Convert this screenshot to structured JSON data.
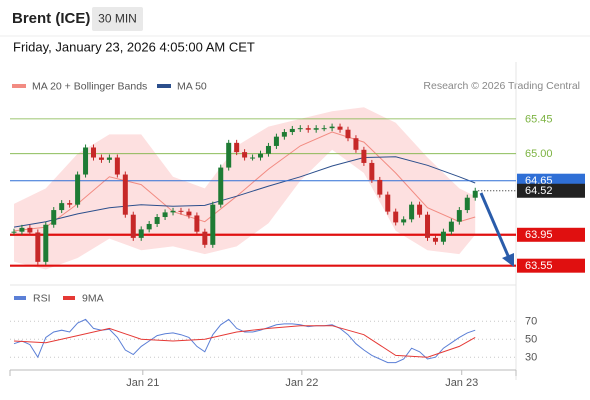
{
  "header": {
    "title": "Brent (ICE)",
    "interval": "30 MIN",
    "datetime": "Friday, January 23, 2026 4:05:00 AM CET",
    "credit": "Research © 2026 Trading Central"
  },
  "chart_data": [
    {
      "type": "candlestick",
      "values": [
        63.99,
        64.04,
        63.98,
        63.6,
        64.08,
        64.27,
        64.36,
        64.34,
        64.73,
        65.08,
        64.95,
        64.92,
        64.95,
        64.73,
        64.21,
        63.91,
        64.02,
        64.09,
        64.18,
        64.24,
        64.26,
        64.25,
        64.2,
        63.99,
        63.82,
        64.34,
        64.82,
        65.14,
        65.02,
        64.95,
        64.95,
        65.0,
        65.1,
        65.22,
        65.28,
        65.32,
        65.33,
        65.31,
        65.33,
        65.33,
        65.35,
        65.31,
        65.2,
        65.05,
        64.88,
        64.66,
        64.47,
        64.25,
        64.11,
        64.15,
        64.34,
        64.21,
        63.91,
        63.86,
        63.99,
        64.12,
        64.27,
        64.43,
        64.52
      ],
      "up_color": "#1e7b34",
      "down_color": "#c62828",
      "overlays": [
        {
          "name": "MA 20 + Bollinger Bands",
          "color": "#f28b82",
          "band_color": "#fde0e0",
          "x": [
            0,
            4,
            8,
            12,
            16,
            20,
            24,
            28,
            32,
            36,
            40,
            44,
            48,
            52,
            56,
            58
          ],
          "values": [
            64.0,
            64.05,
            64.35,
            64.7,
            64.6,
            64.25,
            64.12,
            64.45,
            64.8,
            65.1,
            65.28,
            65.15,
            64.75,
            64.3,
            64.12,
            64.18
          ],
          "upper": [
            64.35,
            64.55,
            65.0,
            65.25,
            65.25,
            64.7,
            64.55,
            65.1,
            65.35,
            65.45,
            65.55,
            65.6,
            65.4,
            64.95,
            64.55,
            64.45
          ],
          "lower": [
            63.6,
            63.5,
            63.65,
            63.9,
            63.75,
            63.8,
            63.7,
            63.8,
            64.1,
            64.65,
            65.05,
            64.75,
            64.0,
            63.75,
            63.7,
            63.95
          ]
        },
        {
          "name": "MA 50",
          "color": "#2c4f8c",
          "x": [
            0,
            4,
            8,
            12,
            16,
            20,
            24,
            28,
            32,
            36,
            40,
            44,
            48,
            52,
            56,
            58
          ],
          "values": [
            64.05,
            64.12,
            64.22,
            64.3,
            64.34,
            64.32,
            64.33,
            64.45,
            64.58,
            64.7,
            64.84,
            64.95,
            64.96,
            64.85,
            64.7,
            64.62
          ]
        }
      ],
      "levels": [
        {
          "value": 65.45,
          "color": "#7cb342",
          "style": "line"
        },
        {
          "value": 65,
          "label": "65.00",
          "color": "#7cb342",
          "style": "line"
        },
        {
          "value": 64.65,
          "color": "#2f6fd6",
          "style": "box"
        },
        {
          "value": 63.95,
          "color": "#e01010",
          "style": "box"
        },
        {
          "value": 63.55,
          "color": "#e01010",
          "style": "box"
        }
      ],
      "last_color": "#222222",
      "xlim": [
        -0.5,
        63
      ],
      "ylim": [
        63.3,
        65.85
      ]
    },
    {
      "type": "line",
      "series": [
        {
          "name": "RSI",
          "color": "#5b7fd6",
          "values": [
            45,
            48,
            44,
            30,
            52,
            58,
            60,
            58,
            68,
            72,
            62,
            60,
            61,
            52,
            38,
            33,
            42,
            48,
            54,
            56,
            57,
            55,
            52,
            42,
            36,
            55,
            66,
            72,
            62,
            58,
            58,
            60,
            63,
            66,
            67,
            67,
            66,
            64,
            65,
            65,
            66,
            62,
            55,
            45,
            38,
            32,
            28,
            24,
            24,
            28,
            40,
            36,
            28,
            30,
            40,
            46,
            52,
            57,
            60
          ]
        },
        {
          "name": "9MA",
          "color": "#e53935",
          "x": [
            0,
            4,
            8,
            12,
            16,
            20,
            24,
            28,
            32,
            36,
            40,
            44,
            48,
            52,
            56,
            58
          ],
          "values": [
            48,
            46,
            54,
            62,
            50,
            48,
            50,
            58,
            62,
            65,
            65,
            55,
            32,
            30,
            42,
            52
          ]
        }
      ],
      "xlim": [
        -0.5,
        63
      ],
      "ylim": [
        18,
        88
      ],
      "yticks": [
        30,
        50,
        70
      ],
      "xticks": [
        {
          "value": 16.2,
          "label": "Jan 21"
        },
        {
          "value": 36.2,
          "label": "Jan 22"
        },
        {
          "value": 56.3,
          "label": "Jan 23"
        }
      ]
    }
  ]
}
